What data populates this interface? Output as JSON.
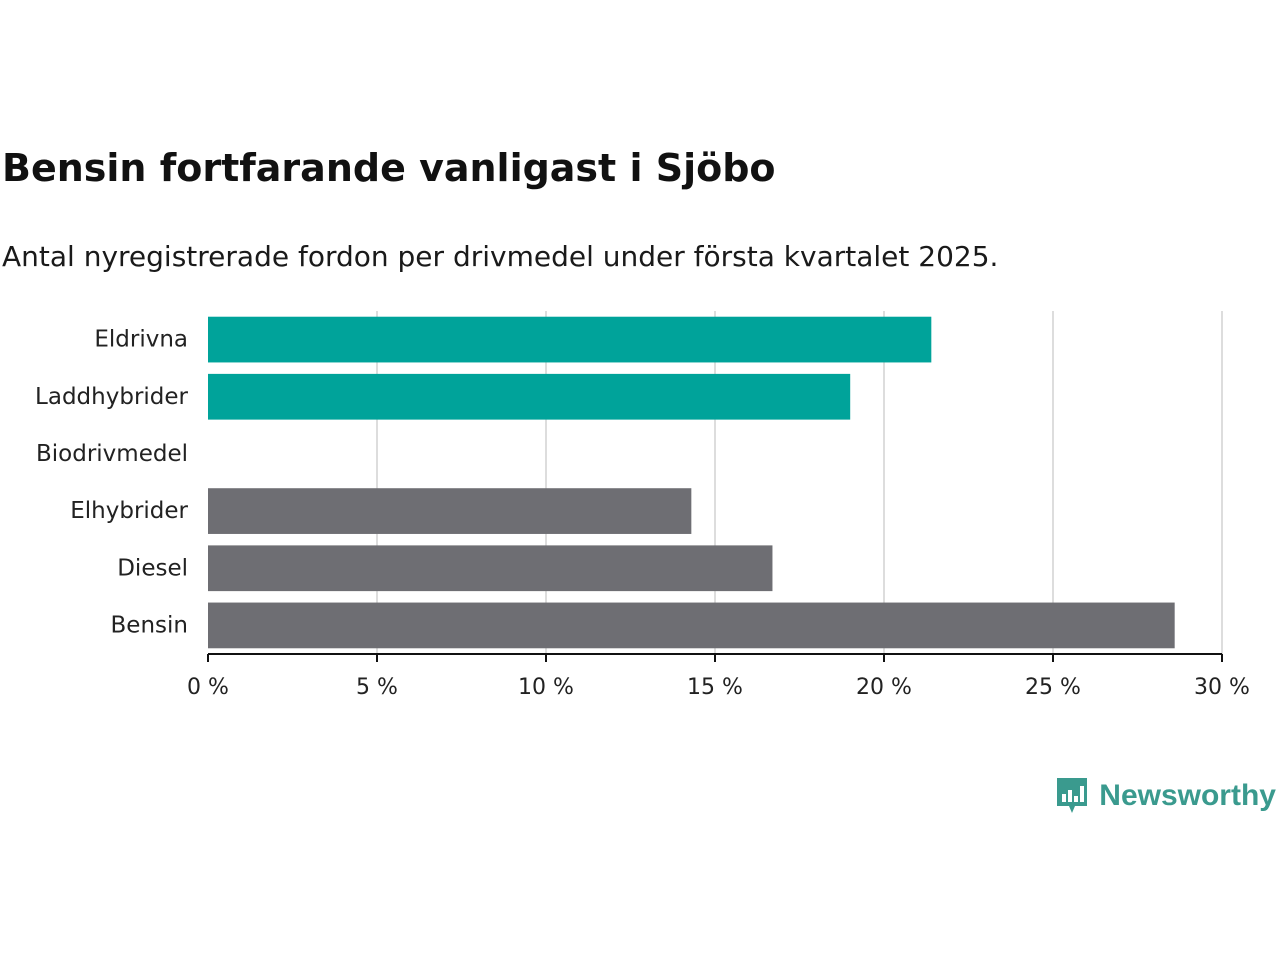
{
  "title": "Bensin fortfarande vanligast i Sjöbo",
  "subtitle": "Antal nyregistrerade fordon per drivmedel under första kvartalet 2025.",
  "logo": {
    "text": "Newsworthy",
    "icon": "bar-chart-speech-bubble-icon"
  },
  "colors": {
    "highlight": "#00a39a",
    "default": "#6e6e73",
    "grid": "#dddddd",
    "axis": "#111111",
    "brand": "#3a9a8e"
  },
  "chart_data": {
    "type": "bar",
    "orientation": "horizontal",
    "categories": [
      "Eldrivna",
      "Laddhybrider",
      "Biodrivmedel",
      "Elhybrider",
      "Diesel",
      "Bensin"
    ],
    "values": [
      21.4,
      19.0,
      0,
      14.3,
      16.7,
      28.6
    ],
    "highlighted": [
      true,
      true,
      false,
      false,
      false,
      false
    ],
    "xlim": [
      0,
      30
    ],
    "xticks": [
      0,
      5,
      10,
      15,
      20,
      25,
      30
    ],
    "xtick_labels": [
      "0 %",
      "5 %",
      "10 %",
      "15 %",
      "20 %",
      "25 %",
      "30 %"
    ],
    "xlabel": "",
    "ylabel": "",
    "grid": "vertical"
  }
}
